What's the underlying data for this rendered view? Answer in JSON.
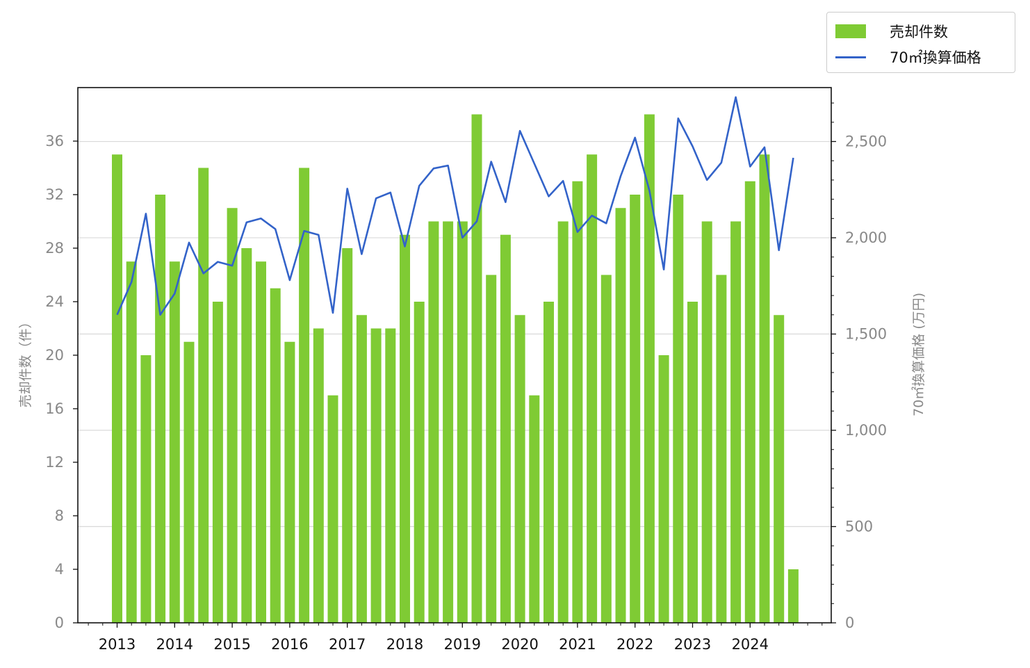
{
  "chart_data": {
    "type": "bar",
    "colors": {
      "bar": "#7fcb34",
      "line": "#3363c9",
      "grid": "#d9d9d9",
      "axis_text": "#888888"
    },
    "legend_placement": "top-right",
    "grid": true,
    "left_axis": {
      "label": "売却件数（件）",
      "ylim": [
        0,
        40
      ],
      "ticks": [
        0,
        4,
        8,
        12,
        16,
        20,
        24,
        28,
        32,
        36
      ]
    },
    "right_axis": {
      "label": "70㎡換算価格 (万円)",
      "ylim": [
        0,
        2780
      ],
      "ticks": [
        "0",
        "500",
        "1,000",
        "1,500",
        "2,000",
        "2,500"
      ]
    },
    "x_ticks": [
      "2013",
      "2014",
      "2015",
      "2016",
      "2017",
      "2018",
      "2019",
      "2020",
      "2021",
      "2022",
      "2023",
      "2024"
    ],
    "series": [
      {
        "name": "売却件数",
        "type": "bar",
        "values": [
          35,
          27,
          20,
          32,
          27,
          21,
          34,
          24,
          31,
          28,
          27,
          25,
          21,
          34,
          22,
          17,
          28,
          23,
          22,
          22,
          29,
          24,
          30,
          30,
          30,
          38,
          26,
          29,
          23,
          17,
          24,
          30,
          33,
          35,
          26,
          31,
          32,
          38,
          20,
          32,
          24,
          30,
          26,
          30,
          33,
          35,
          23,
          4
        ]
      },
      {
        "name": "70㎡換算価格",
        "type": "line",
        "values": [
          1600,
          1770,
          2125,
          1600,
          1710,
          1975,
          1815,
          1875,
          1855,
          2080,
          2100,
          2045,
          1780,
          2035,
          2015,
          1610,
          2255,
          1915,
          2205,
          2235,
          1955,
          2270,
          2360,
          2375,
          2000,
          2085,
          2395,
          2185,
          2555,
          2385,
          2215,
          2295,
          2030,
          2115,
          2075,
          2320,
          2520,
          2245,
          1835,
          2620,
          2475,
          2300,
          2390,
          2730,
          2370,
          2470,
          1935,
          2415
        ]
      }
    ]
  }
}
